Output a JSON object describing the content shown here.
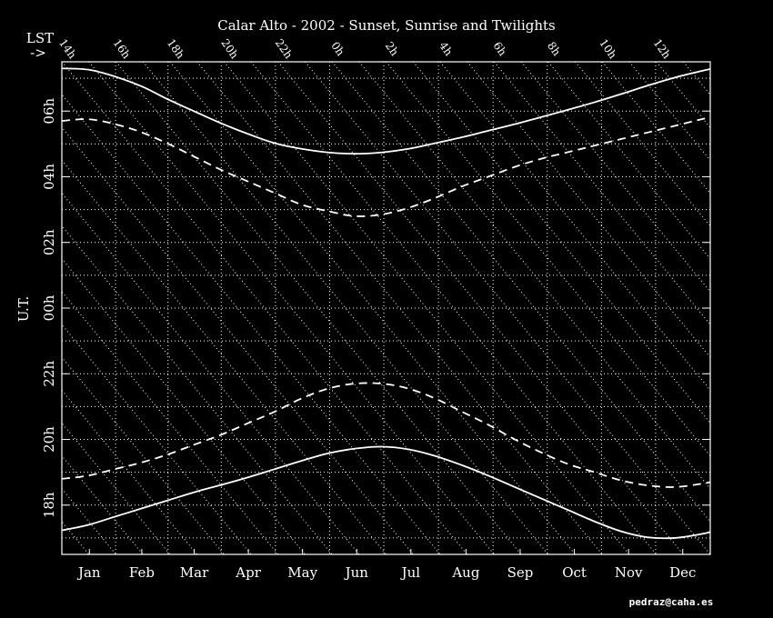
{
  "chart_data": {
    "type": "line",
    "title": "Calar Alto - 2002 - Sunset, Sunrise and Twilights",
    "ylabel": "U.T.",
    "footer": "pedraz@caha.es",
    "lst": {
      "title": "LST",
      "arrow": "->",
      "labels": [
        "14h",
        "16h",
        "18h",
        "20h",
        "22h",
        "0h",
        "2h",
        "4h",
        "6h",
        "8h",
        "10h",
        "12h"
      ]
    },
    "x": [
      0,
      15,
      30,
      45,
      60,
      75,
      90,
      105,
      120,
      135,
      150,
      165,
      180,
      195,
      210,
      225,
      240,
      255,
      270,
      285,
      300,
      315,
      330,
      345,
      360,
      365
    ],
    "xlim": [
      0,
      365
    ],
    "xticks": [
      {
        "value": 15.5,
        "label": "Jan"
      },
      {
        "value": 45,
        "label": "Feb"
      },
      {
        "value": 74.5,
        "label": "Mar"
      },
      {
        "value": 105,
        "label": "Apr"
      },
      {
        "value": 135.5,
        "label": "May"
      },
      {
        "value": 166,
        "label": "Jun"
      },
      {
        "value": 196.5,
        "label": "Jul"
      },
      {
        "value": 227.5,
        "label": "Aug"
      },
      {
        "value": 258,
        "label": "Sep"
      },
      {
        "value": 288.5,
        "label": "Oct"
      },
      {
        "value": 319,
        "label": "Nov"
      },
      {
        "value": 349.5,
        "label": "Dec"
      }
    ],
    "ylim": [
      -7.5,
      7.5
    ],
    "yticks": [
      {
        "value": 6,
        "label": "06h"
      },
      {
        "value": 4,
        "label": "04h"
      },
      {
        "value": 2,
        "label": "02h"
      },
      {
        "value": 0,
        "label": "00h"
      },
      {
        "value": -2,
        "label": "22h"
      },
      {
        "value": -4,
        "label": "20h"
      },
      {
        "value": -6,
        "label": "18h"
      }
    ],
    "grid": true,
    "series": [
      {
        "color": "#ffffff",
        "dashed": false,
        "values": [
          7.3,
          7.26,
          7.05,
          6.75,
          6.35,
          5.98,
          5.62,
          5.3,
          5.02,
          4.85,
          4.74,
          4.7,
          4.74,
          4.85,
          5.02,
          5.2,
          5.4,
          5.6,
          5.82,
          6.04,
          6.27,
          6.52,
          6.78,
          7.02,
          7.22,
          7.28
        ]
      },
      {
        "color": "#ffffff",
        "dashed": true,
        "values": [
          5.7,
          5.75,
          5.6,
          5.35,
          5.0,
          4.6,
          4.2,
          3.85,
          3.5,
          3.15,
          2.95,
          2.8,
          2.85,
          3.05,
          3.35,
          3.7,
          4.0,
          4.3,
          4.55,
          4.75,
          4.95,
          5.15,
          5.35,
          5.55,
          5.75,
          5.8
        ]
      },
      {
        "color": "#ffffff",
        "dashed": true,
        "values": [
          -5.2,
          -5.1,
          -4.9,
          -4.7,
          -4.45,
          -4.15,
          -3.85,
          -3.5,
          -3.15,
          -2.75,
          -2.45,
          -2.3,
          -2.3,
          -2.45,
          -2.75,
          -3.15,
          -3.55,
          -4.0,
          -4.4,
          -4.75,
          -5.0,
          -5.25,
          -5.4,
          -5.45,
          -5.35,
          -5.3
        ]
      },
      {
        "color": "#ffffff",
        "dashed": false,
        "values": [
          -6.77,
          -6.6,
          -6.35,
          -6.1,
          -5.85,
          -5.6,
          -5.38,
          -5.15,
          -4.9,
          -4.65,
          -4.42,
          -4.28,
          -4.22,
          -4.3,
          -4.5,
          -4.78,
          -5.1,
          -5.45,
          -5.8,
          -6.15,
          -6.5,
          -6.8,
          -6.98,
          -7.0,
          -6.88,
          -6.82
        ]
      }
    ]
  }
}
